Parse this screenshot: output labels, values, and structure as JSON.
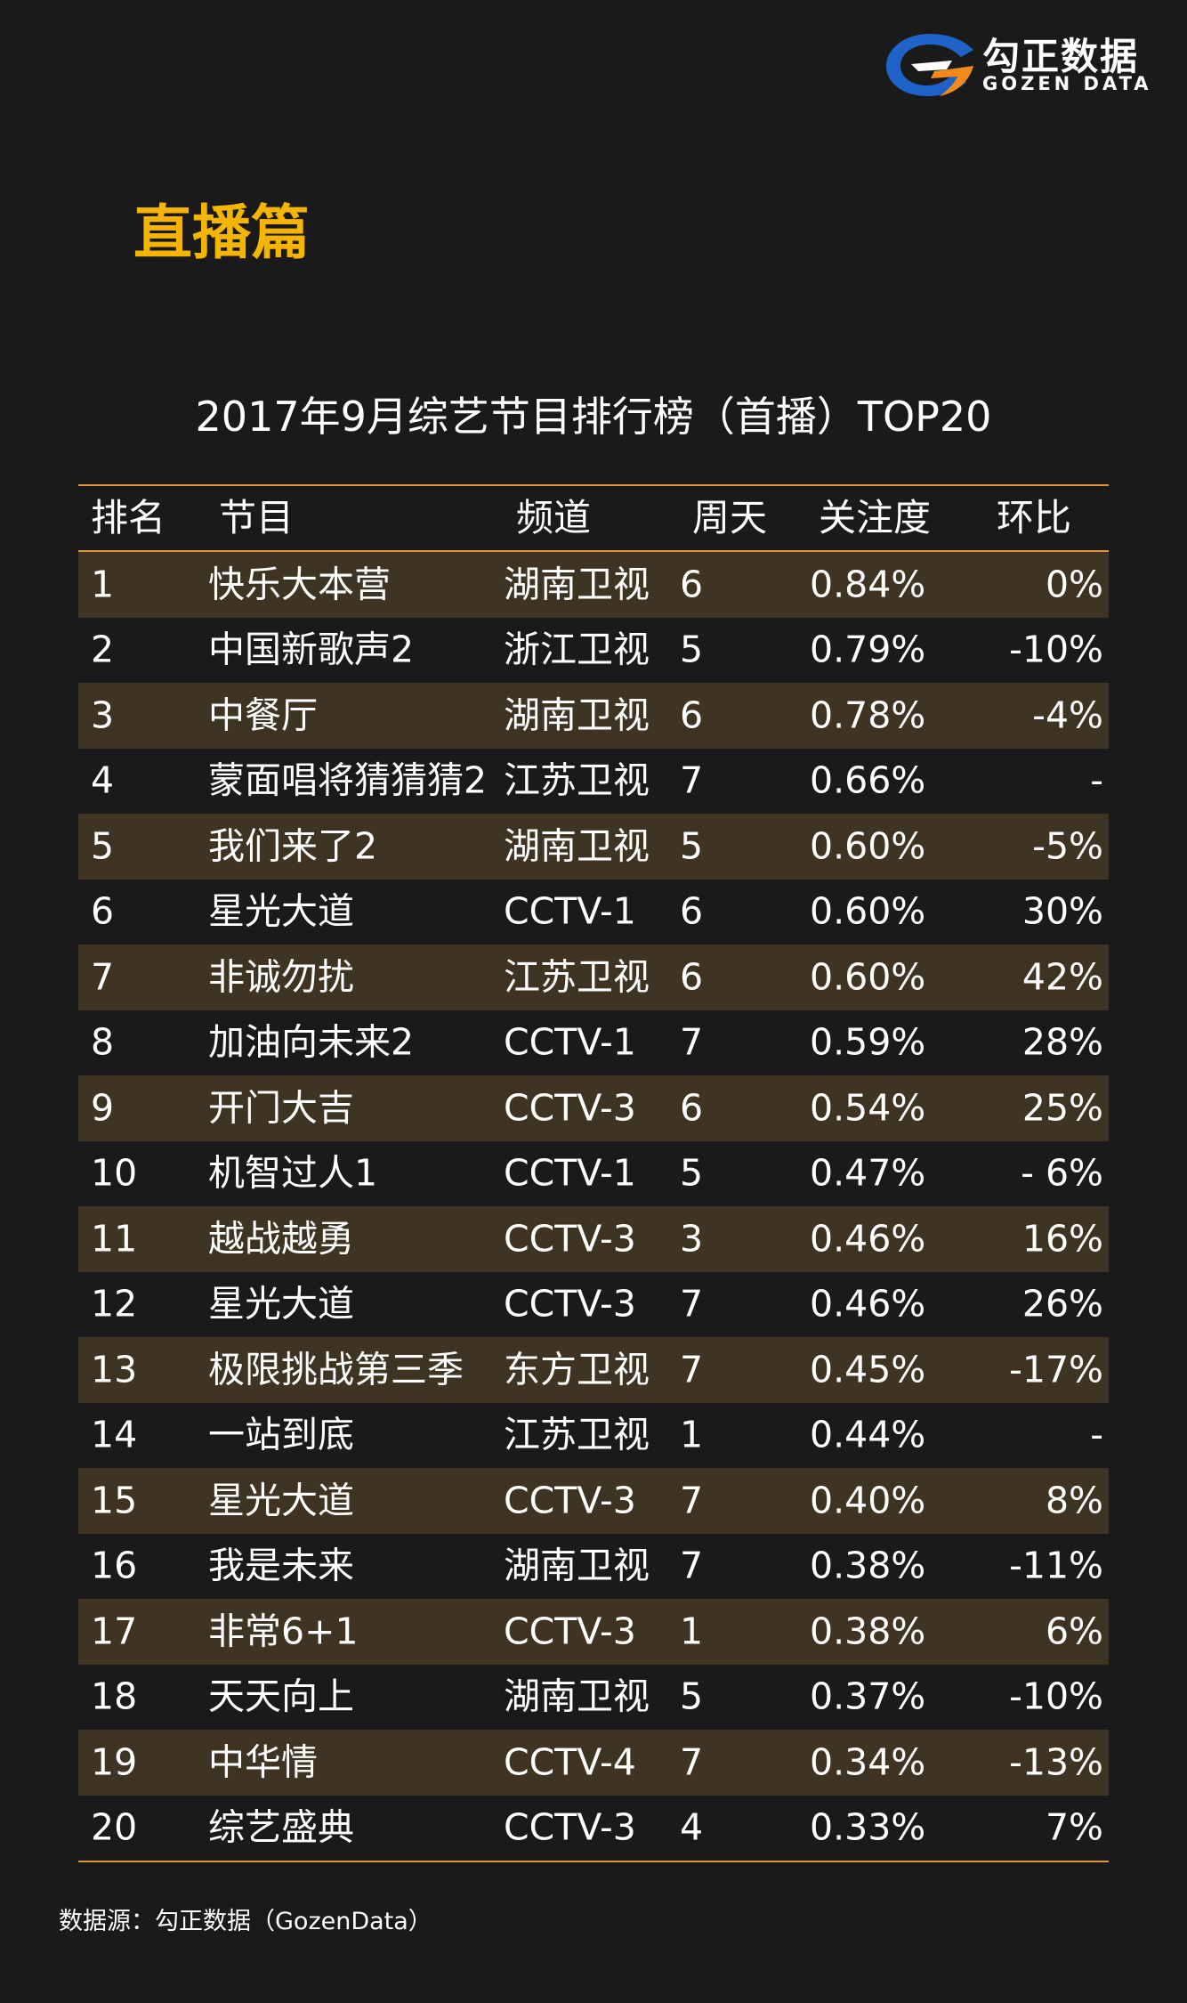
{
  "logo": {
    "name_cn": "勾正数据",
    "name_en": "GOZEN DATA",
    "colors": {
      "blue": "#1f63c8",
      "orange": "#f08a1c"
    }
  },
  "section_title": "直播篇",
  "table_title": "2017年9月综艺节目排行榜（首播）TOP20",
  "headers": {
    "rank": "排名",
    "program": "节目",
    "channel": "频道",
    "day": "周天",
    "attention": "关注度",
    "change": "环比"
  },
  "rows": [
    {
      "rank": "1",
      "program": "快乐大本营",
      "channel": "湖南卫视",
      "day": "6",
      "attention": "0.84%",
      "change": "0%"
    },
    {
      "rank": "2",
      "program": "中国新歌声2",
      "channel": "浙江卫视",
      "day": "5",
      "attention": "0.79%",
      "change": "-10%"
    },
    {
      "rank": "3",
      "program": "中餐厅",
      "channel": "湖南卫视",
      "day": "6",
      "attention": "0.78%",
      "change": "-4%"
    },
    {
      "rank": "4",
      "program": "蒙面唱将猜猜猜2",
      "channel": "江苏卫视",
      "day": "7",
      "attention": "0.66%",
      "change": "-"
    },
    {
      "rank": "5",
      "program": "我们来了2",
      "channel": "湖南卫视",
      "day": "5",
      "attention": "0.60%",
      "change": "-5%"
    },
    {
      "rank": "6",
      "program": "星光大道",
      "channel": "CCTV-1",
      "day": "6",
      "attention": "0.60%",
      "change": "30%"
    },
    {
      "rank": "7",
      "program": "非诚勿扰",
      "channel": "江苏卫视",
      "day": "6",
      "attention": "0.60%",
      "change": "42%"
    },
    {
      "rank": "8",
      "program": "加油向未来2",
      "channel": "CCTV-1",
      "day": "7",
      "attention": "0.59%",
      "change": "28%"
    },
    {
      "rank": "9",
      "program": "开门大吉",
      "channel": "CCTV-3",
      "day": "6",
      "attention": "0.54%",
      "change": "25%"
    },
    {
      "rank": "10",
      "program": "机智过人1",
      "channel": "CCTV-1",
      "day": "5",
      "attention": "0.47%",
      "change": "- 6%"
    },
    {
      "rank": "11",
      "program": "越战越勇",
      "channel": "CCTV-3",
      "day": "3",
      "attention": "0.46%",
      "change": "16%"
    },
    {
      "rank": "12",
      "program": "星光大道",
      "channel": "CCTV-3",
      "day": "7",
      "attention": "0.46%",
      "change": "26%"
    },
    {
      "rank": "13",
      "program": "极限挑战第三季",
      "channel": "东方卫视",
      "day": "7",
      "attention": "0.45%",
      "change": "-17%"
    },
    {
      "rank": "14",
      "program": "一站到底",
      "channel": "江苏卫视",
      "day": "1",
      "attention": "0.44%",
      "change": "-"
    },
    {
      "rank": "15",
      "program": "星光大道",
      "channel": "CCTV-3",
      "day": "7",
      "attention": "0.40%",
      "change": "8%"
    },
    {
      "rank": "16",
      "program": "我是未来",
      "channel": "湖南卫视",
      "day": "7",
      "attention": "0.38%",
      "change": "-11%"
    },
    {
      "rank": "17",
      "program": "非常6+1",
      "channel": "CCTV-3",
      "day": "1",
      "attention": "0.38%",
      "change": "6%"
    },
    {
      "rank": "18",
      "program": "天天向上",
      "channel": "湖南卫视",
      "day": "5",
      "attention": "0.37%",
      "change": "-10%"
    },
    {
      "rank": "19",
      "program": "中华情",
      "channel": "CCTV-4",
      "day": "7",
      "attention": "0.34%",
      "change": "-13%"
    },
    {
      "rank": "20",
      "program": "综艺盛典",
      "channel": "CCTV-3",
      "day": "4",
      "attention": "0.33%",
      "change": "7%"
    }
  ],
  "source": "数据源：勾正数据（GozenData）"
}
